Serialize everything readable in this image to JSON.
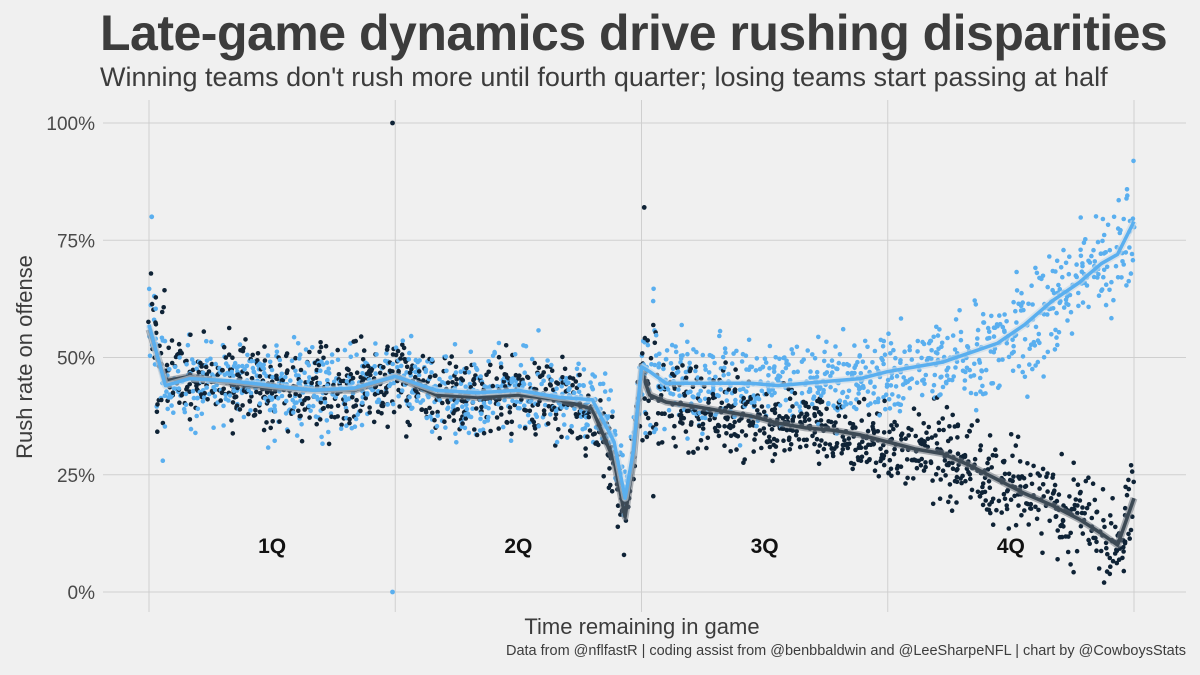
{
  "title": "Late-game dynamics drive rushing disparities",
  "subtitle": "Winning teams don't rush more until fourth quarter; losing teams start passing at half",
  "caption": "Data from @nflfastR | coding assist from @benbbaldwin and @LeeSharpeNFL | chart by @CowboysStats",
  "colors": {
    "background": "#f0f0f0",
    "winning_points": "#5aafef",
    "losing_points": "#0f2336",
    "winning_line": "#5aafef",
    "losing_line": "#3d4a55",
    "smooth_winning": "#c8d8e6",
    "smooth_losing": "#6f777f",
    "grid": "#cfcfcf"
  },
  "chart_data": {
    "type": "scatter",
    "xlabel": "Time remaining in game",
    "ylabel": "Rush rate on offense",
    "xlim": [
      3600,
      0
    ],
    "ylim": [
      0,
      1
    ],
    "y_ticks": [
      0,
      0.25,
      0.5,
      0.75,
      1.0
    ],
    "y_tick_labels": [
      "0%",
      "25%",
      "50%",
      "75%",
      "100%"
    ],
    "x_grid": [
      3600,
      2700,
      1800,
      900,
      0
    ],
    "quarter_labels": [
      {
        "label": "1Q",
        "x": 3150,
        "y": 0.1
      },
      {
        "label": "2Q",
        "x": 2250,
        "y": 0.1
      },
      {
        "label": "3Q",
        "x": 1350,
        "y": 0.1
      },
      {
        "label": "4Q",
        "x": 450,
        "y": 0.1
      }
    ],
    "series": [
      {
        "name": "Winning teams",
        "color": "#5aafef",
        "trend": [
          [
            3600,
            0.57
          ],
          [
            3540,
            0.44
          ],
          [
            3450,
            0.455
          ],
          [
            3300,
            0.45
          ],
          [
            3150,
            0.44
          ],
          [
            3000,
            0.43
          ],
          [
            2850,
            0.435
          ],
          [
            2700,
            0.46
          ],
          [
            2550,
            0.43
          ],
          [
            2400,
            0.425
          ],
          [
            2250,
            0.43
          ],
          [
            2100,
            0.415
          ],
          [
            1980,
            0.41
          ],
          [
            1900,
            0.32
          ],
          [
            1860,
            0.2
          ],
          [
            1830,
            0.3
          ],
          [
            1800,
            0.48
          ],
          [
            1770,
            0.47
          ],
          [
            1710,
            0.445
          ],
          [
            1600,
            0.445
          ],
          [
            1500,
            0.445
          ],
          [
            1400,
            0.445
          ],
          [
            1300,
            0.44
          ],
          [
            1200,
            0.445
          ],
          [
            1100,
            0.45
          ],
          [
            1000,
            0.455
          ],
          [
            900,
            0.47
          ],
          [
            800,
            0.48
          ],
          [
            700,
            0.49
          ],
          [
            600,
            0.51
          ],
          [
            500,
            0.53
          ],
          [
            400,
            0.57
          ],
          [
            300,
            0.62
          ],
          [
            200,
            0.66
          ],
          [
            120,
            0.7
          ],
          [
            60,
            0.72
          ],
          [
            0,
            0.79
          ]
        ]
      },
      {
        "name": "Losing teams",
        "color": "#0f2336",
        "trend": [
          [
            3600,
            0.56
          ],
          [
            3540,
            0.45
          ],
          [
            3450,
            0.46
          ],
          [
            3300,
            0.445
          ],
          [
            3150,
            0.435
          ],
          [
            3000,
            0.43
          ],
          [
            2850,
            0.43
          ],
          [
            2700,
            0.46
          ],
          [
            2550,
            0.42
          ],
          [
            2400,
            0.415
          ],
          [
            2250,
            0.42
          ],
          [
            2100,
            0.41
          ],
          [
            1980,
            0.39
          ],
          [
            1900,
            0.28
          ],
          [
            1860,
            0.16
          ],
          [
            1830,
            0.28
          ],
          [
            1800,
            0.47
          ],
          [
            1770,
            0.42
          ],
          [
            1710,
            0.405
          ],
          [
            1600,
            0.395
          ],
          [
            1500,
            0.385
          ],
          [
            1400,
            0.375
          ],
          [
            1300,
            0.36
          ],
          [
            1200,
            0.35
          ],
          [
            1100,
            0.345
          ],
          [
            1000,
            0.335
          ],
          [
            900,
            0.32
          ],
          [
            800,
            0.305
          ],
          [
            700,
            0.295
          ],
          [
            600,
            0.27
          ],
          [
            500,
            0.24
          ],
          [
            400,
            0.21
          ],
          [
            300,
            0.185
          ],
          [
            200,
            0.155
          ],
          [
            120,
            0.125
          ],
          [
            60,
            0.1
          ],
          [
            0,
            0.2
          ]
        ]
      }
    ],
    "outliers": [
      {
        "series": "Losing teams",
        "x": 2710,
        "y": 1.0
      },
      {
        "series": "Winning teams",
        "x": 2710,
        "y": 0.0
      },
      {
        "series": "Winning teams",
        "x": 3590,
        "y": 0.8
      },
      {
        "series": "Losing teams",
        "x": 1790,
        "y": 0.82
      }
    ]
  }
}
